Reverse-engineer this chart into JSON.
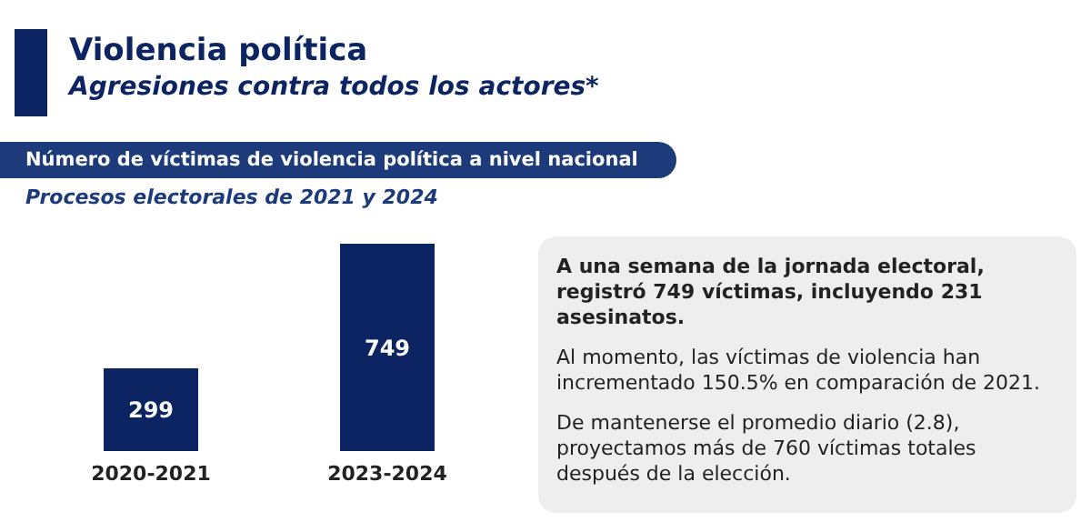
{
  "chart_data": {
    "type": "bar",
    "title": "Violencia política",
    "subtitle": "Agresiones contra todos los actores*",
    "categories": [
      "2020-2021",
      "2023-2024"
    ],
    "values": [
      299,
      749
    ],
    "color": "#0d2463",
    "tick_labels": "x",
    "data_labels": true,
    "grid": false,
    "legend": false,
    "annotations": [
      "Número de víctimas de violencia política a nivel nacional",
      "Procesos electorales de 2021 y 2024",
      "A una semana de la jornada electoral, registró 749 víctimas, incluyendo 231 asesinatos.",
      "Al momento, las víctimas de violencia han incrementado 150.5% en comparación de 2021.",
      "De mantenerse el promedio diario (2.8), proyectamos más de 760 víctimas totales después de la elección."
    ]
  }
}
